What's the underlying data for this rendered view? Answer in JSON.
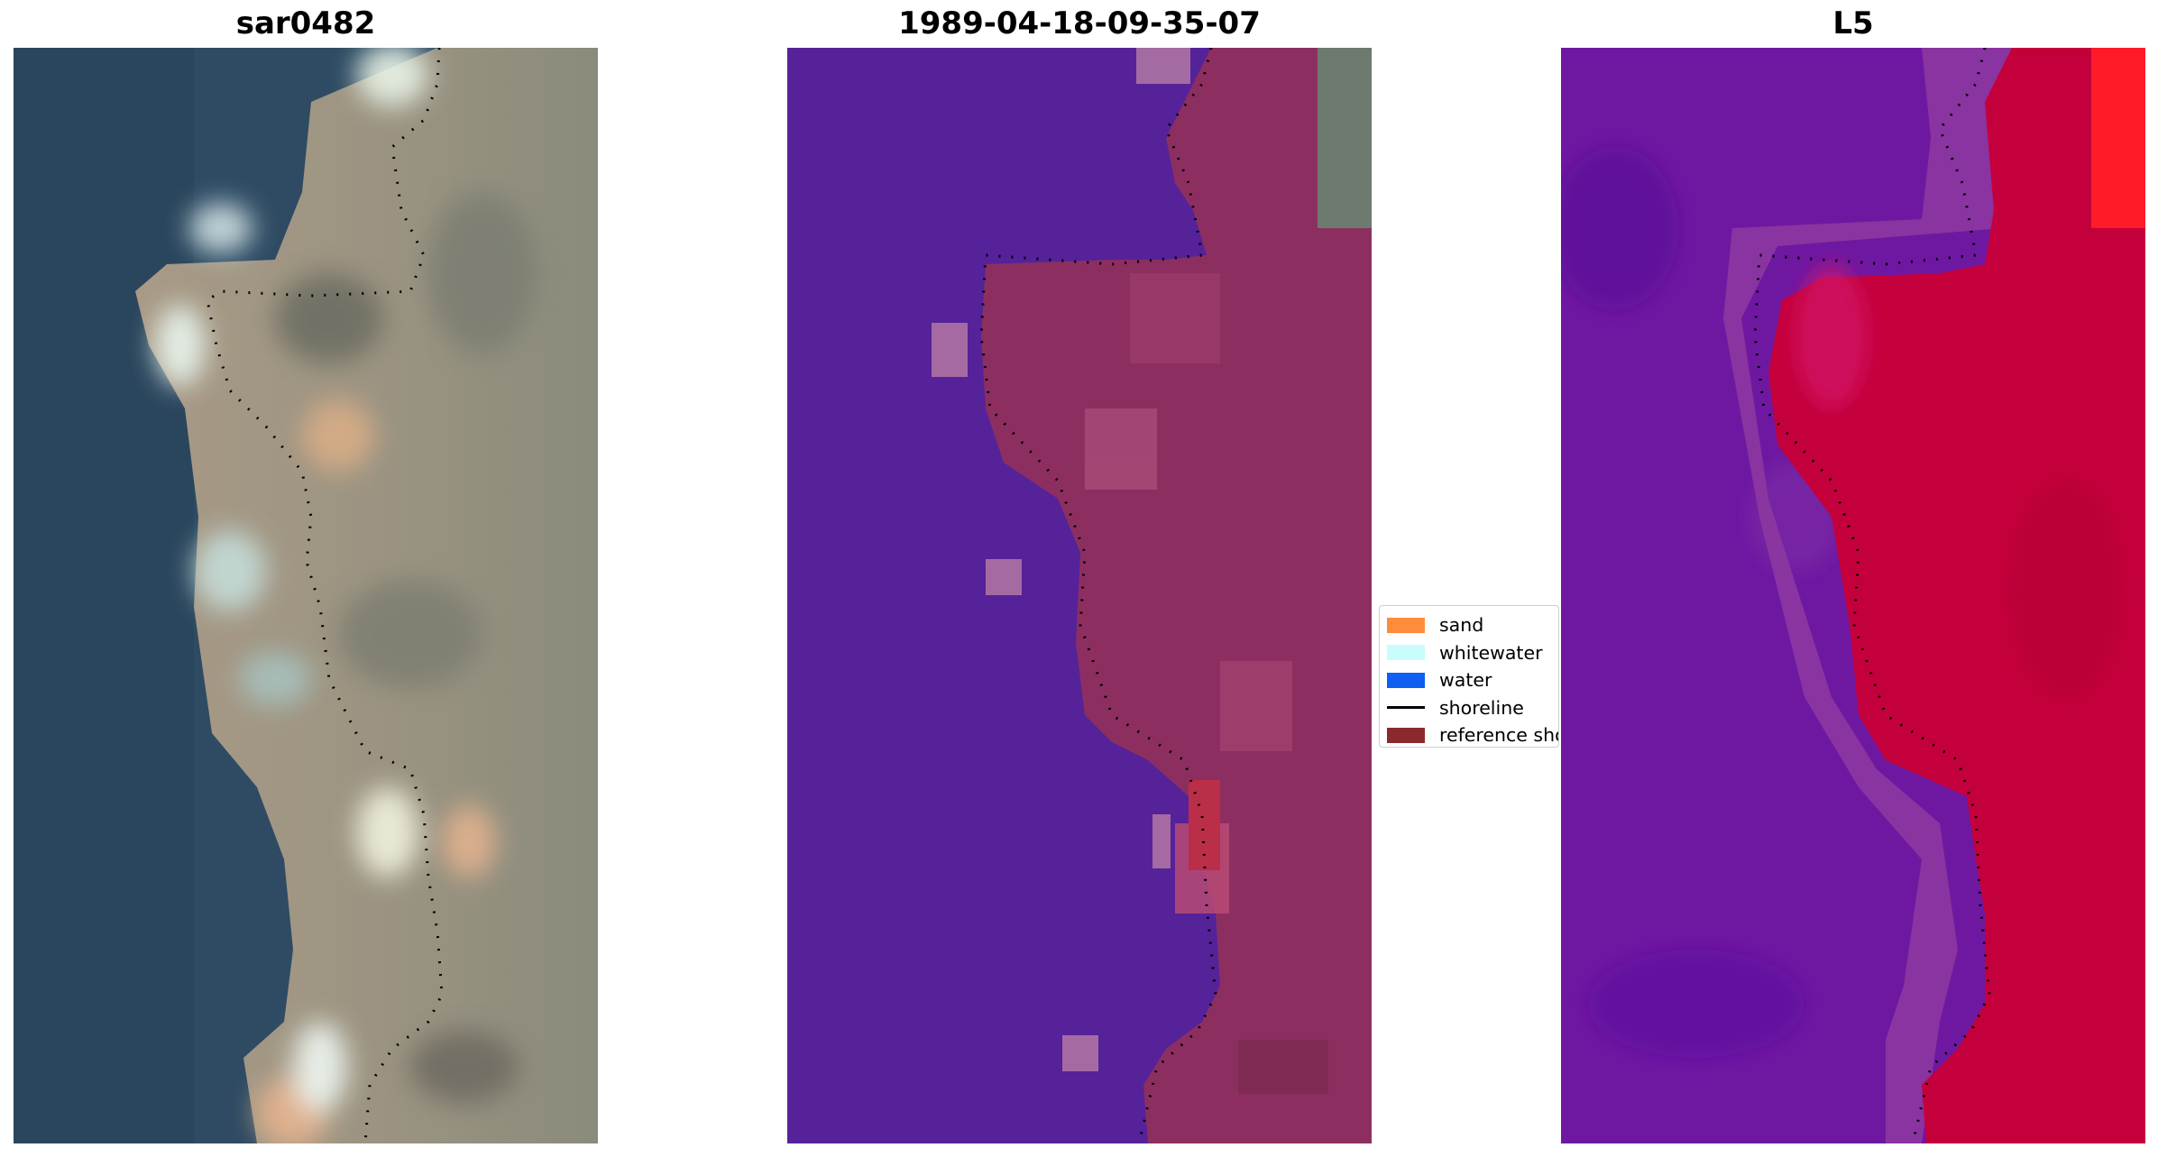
{
  "panels": [
    {
      "title": "sar0482",
      "kind": "rgb"
    },
    {
      "title": "1989-04-18-09-35-07",
      "kind": "classified"
    },
    {
      "title": "L5",
      "kind": "index"
    }
  ],
  "legend": {
    "items": [
      {
        "label": "sand",
        "color": "#ff8c3a",
        "type": "patch"
      },
      {
        "label": "whitewater",
        "color": "#c8fdfb",
        "type": "patch"
      },
      {
        "label": "water",
        "color": "#0f5ff3",
        "type": "patch"
      },
      {
        "label": "shoreline",
        "color": "#000000",
        "type": "line"
      },
      {
        "label": "reference shoreline",
        "color": "#8b2a2e",
        "type": "patch"
      }
    ]
  },
  "colors": {
    "ocean": "#2c4a62",
    "land": "#8c8a7a",
    "water_class": "#54219a",
    "land_class": "#8b2a5c",
    "index_low": "#6a10a0",
    "index_high": "#c4003a"
  }
}
